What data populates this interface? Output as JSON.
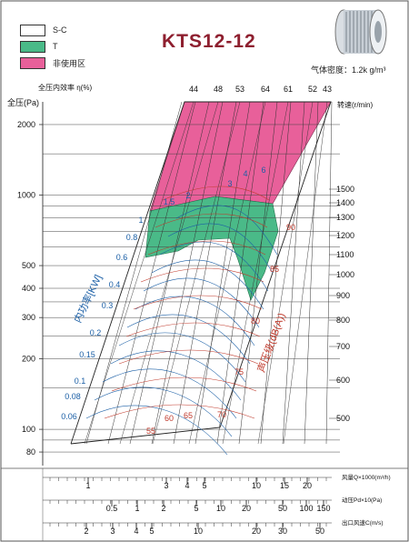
{
  "title": "KTS12-12",
  "density": "气体密度：1.2k g/m³",
  "legend": [
    {
      "label": "S-C",
      "color": "#ffffff"
    },
    {
      "label": "T",
      "color": "#4aba88"
    },
    {
      "label": "非使用区",
      "color": "#e8609a"
    }
  ],
  "colors": {
    "efficiency": "#1a3fb3",
    "noise": "#c0392b",
    "power": "#1b5fa6"
  },
  "chart_data": {
    "type": "line",
    "title": "KTS12-12",
    "ylabel": "全压(Pa)",
    "y_ticks": [
      80,
      100,
      200,
      300,
      400,
      500,
      1000,
      2000
    ],
    "y_log": true,
    "ylim": [
      70,
      2500
    ],
    "efficiency_label": "全压内效率 η(%)",
    "efficiency_ticks": [
      "44",
      "48",
      "53",
      "64",
      "61",
      "52",
      "43"
    ],
    "speed_label": "转速(r/min)",
    "speed_ticks": [
      "500",
      "600",
      "700",
      "800",
      "900",
      "1000",
      "1100",
      "1200",
      "1300",
      "1400",
      "1500"
    ],
    "power_label": "内功率[KW]",
    "power_ticks": [
      "0.06",
      "0.08",
      "0.1",
      "0.15",
      "0.2",
      "0.3",
      "0.4",
      "0.6",
      "0.8",
      "1",
      "1.5",
      "2",
      "3",
      "4",
      "6"
    ],
    "noise_label": "声压级(dB(A))",
    "noise_ticks": [
      "55",
      "60",
      "65",
      "70",
      "75",
      "80",
      "85",
      "90"
    ],
    "flow_label": "风量Q×1000(m³/h)",
    "flow_ticks": [
      "1",
      "3",
      "4",
      "5",
      "10",
      "15",
      "20"
    ],
    "dynp_label": "动压Pd×10(Pa)",
    "dynp_ticks": [
      "0.5",
      "1",
      "2",
      "5",
      "10",
      "20",
      "50",
      "100",
      "150"
    ],
    "vel_label": "出口风速C(m/s)",
    "vel_ticks": [
      "2",
      "3",
      "4",
      "5",
      "10",
      "20",
      "30",
      "50"
    ]
  }
}
